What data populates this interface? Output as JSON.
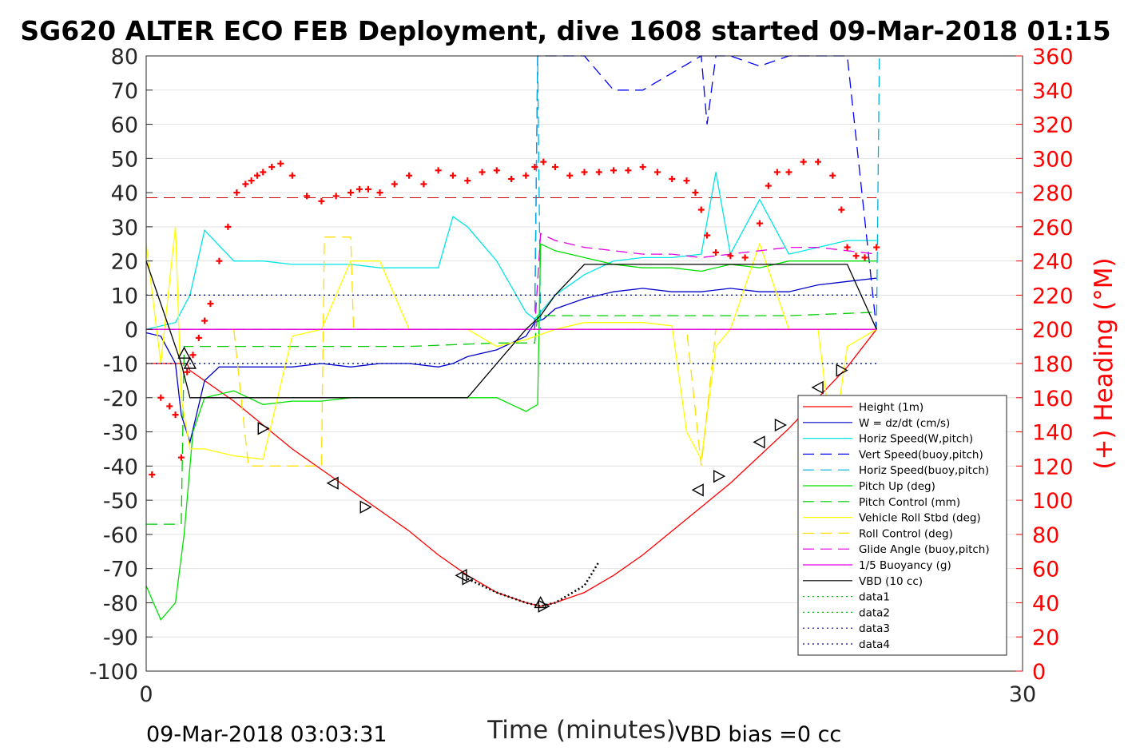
{
  "chart_data": {
    "type": "line",
    "title": "SG620 ALTER ECO FEB Deployment, dive 1608 started 09-Mar-2018 01:15",
    "xlabel": "Time (minutes)",
    "ylabel_right": "(+) Heading (°M)",
    "footer_left": "09-Mar-2018 03:03:31",
    "footer_right": "VBD bias =0 cc",
    "xlim": [
      0,
      30
    ],
    "ylim": [
      -100,
      80
    ],
    "ylim_right": [
      0,
      360
    ],
    "xticks": [
      "0",
      "30"
    ],
    "yticks": [
      "80",
      "70",
      "60",
      "50",
      "40",
      "30",
      "20",
      "10",
      "0",
      "-10",
      "-20",
      "-30",
      "-40",
      "-50",
      "-60",
      "-70",
      "-80",
      "-90",
      "-100"
    ],
    "yticks_right": [
      "360",
      "340",
      "320",
      "300",
      "280",
      "260",
      "240",
      "220",
      "200",
      "180",
      "160",
      "140",
      "120",
      "100",
      "80",
      "60",
      "40",
      "20",
      "0"
    ],
    "grid": true,
    "legend_position": "lower-right",
    "series": [
      {
        "name": "Height (1m)",
        "color": "#ff0000",
        "style": "solid",
        "x": [
          0,
          1.4,
          1.5,
          3,
          4,
          5,
          6,
          7,
          8,
          9,
          10,
          11,
          12,
          13,
          13.5,
          14,
          15,
          16,
          17,
          18,
          19,
          20,
          21,
          22,
          23,
          24,
          25
        ],
        "y": [
          -10,
          -10,
          -12,
          -21,
          -28,
          -35,
          -41,
          -47,
          -53,
          -59,
          -66,
          -72,
          -77,
          -80,
          -81,
          -80,
          -77,
          -72,
          -66,
          -59,
          -52,
          -45,
          -37,
          -29,
          -20,
          -11,
          0
        ]
      },
      {
        "name": "W = dz/dt (cm/s)",
        "color": "#0000c8",
        "style": "solid",
        "x": [
          0,
          0.5,
          1,
          1.2,
          1.5,
          2,
          2.5,
          3,
          4,
          5,
          6,
          7,
          8,
          9,
          10,
          10.5,
          11,
          12,
          13,
          13.3,
          13.6,
          14,
          15,
          16,
          17,
          18,
          19,
          20,
          21,
          22,
          23,
          24,
          25
        ],
        "y": [
          -1,
          -2,
          -10,
          -25,
          -33,
          -15,
          -11,
          -11,
          -11,
          -11,
          -10,
          -11,
          -10,
          -10,
          -11,
          -10,
          -8,
          -6,
          -2,
          2,
          3,
          6,
          9,
          11,
          12,
          11,
          11,
          12,
          11,
          11,
          13,
          14,
          15
        ]
      },
      {
        "name": "Horiz Speed(W,pitch)",
        "color": "#00e5e5",
        "style": "solid",
        "x": [
          0,
          1,
          1.5,
          2,
          3,
          4,
          5,
          6,
          7,
          8,
          9,
          10,
          10.5,
          11,
          12,
          13,
          13.3,
          13.6,
          14,
          15,
          16,
          17,
          18,
          19,
          19.5,
          20,
          21,
          22,
          23,
          24,
          25
        ],
        "y": [
          0,
          2,
          10,
          29,
          20,
          20,
          19,
          19,
          19,
          18,
          18,
          18,
          33,
          30,
          20,
          5,
          3,
          6,
          10,
          16,
          20,
          21,
          21,
          22,
          46,
          22,
          38,
          22,
          24,
          26,
          26
        ]
      },
      {
        "name": "Vert Speed(buoy,pitch)",
        "color": "#0000ff",
        "style": "dashed",
        "x": [
          13.3,
          13.4,
          14,
          15,
          16,
          17,
          18,
          19,
          19.2,
          19.5,
          20,
          21,
          22,
          23,
          24,
          25
        ],
        "y": [
          0,
          80,
          80,
          80,
          70,
          70,
          75,
          80,
          60,
          80,
          80,
          77,
          80,
          80,
          80,
          0
        ]
      },
      {
        "name": "Horiz Speed(buoy,pitch)",
        "color": "#00b0e0",
        "style": "dashed",
        "x": [
          13.3,
          13.4,
          13.5,
          25,
          25.1
        ],
        "y": [
          0,
          80,
          0,
          0,
          80
        ]
      },
      {
        "name": "Pitch Up (deg)",
        "color": "#00e000",
        "style": "solid",
        "x": [
          0,
          0.5,
          1,
          1.3,
          1.6,
          2,
          3,
          4,
          5,
          6,
          7,
          8,
          9,
          10,
          11,
          12,
          12.5,
          13,
          13.4,
          13.5,
          14,
          15,
          16,
          17,
          18,
          19,
          20,
          21,
          22,
          23,
          24,
          25
        ],
        "y": [
          -75,
          -85,
          -80,
          -60,
          -30,
          -20,
          -18,
          -22,
          -21,
          -21,
          -20,
          -20,
          -20,
          -20,
          -20,
          -20,
          -22,
          -24,
          -22,
          25,
          23,
          21,
          19,
          18,
          18,
          17,
          19,
          18,
          20,
          20,
          20,
          20
        ]
      },
      {
        "name": "Pitch Control (mm)",
        "color": "#00cc00",
        "style": "dashed",
        "x": [
          0,
          1.2,
          1.3,
          3,
          6,
          9,
          12,
          13.3,
          13.4,
          16,
          19,
          22,
          25
        ],
        "y": [
          -57,
          -57,
          -5,
          -5,
          -5,
          -5,
          -4,
          -4,
          4,
          4,
          4,
          4,
          5
        ]
      },
      {
        "name": "Vehicle Roll Stbd (deg)",
        "color": "#ffff00",
        "style": "solid",
        "x": [
          0,
          0.5,
          1,
          1.2,
          1.5,
          2,
          3,
          4,
          5,
          6,
          7,
          8,
          9,
          10,
          11,
          12,
          13,
          14,
          15,
          16,
          17,
          18,
          18.5,
          19,
          19.5,
          20,
          21,
          22,
          23,
          23.5,
          24,
          25
        ],
        "y": [
          25,
          -10,
          30,
          -20,
          -35,
          -35,
          -37,
          -38,
          -2,
          0,
          20,
          20,
          0,
          0,
          0,
          -5,
          -3,
          0,
          2,
          2,
          2,
          1,
          -30,
          -38,
          -5,
          0,
          25,
          0,
          0,
          -35,
          -5,
          0
        ]
      },
      {
        "name": "Roll Control (deg)",
        "color": "#ffe000",
        "style": "dashed",
        "x": [
          0,
          3,
          3.5,
          6,
          6.1,
          7,
          7.1,
          13,
          16,
          18.5,
          19,
          19.5,
          20,
          25
        ],
        "y": [
          0,
          0,
          -40,
          -40,
          27,
          27,
          0,
          0,
          0,
          0,
          -40,
          0,
          0,
          0
        ]
      },
      {
        "name": "Glide Angle (buoy,pitch)",
        "color": "#e000e0",
        "style": "dashed",
        "x": [
          0,
          13.3,
          13.5,
          14,
          15,
          16,
          17,
          18,
          19,
          20,
          21,
          22,
          23,
          24,
          25
        ],
        "y": [
          0,
          0,
          28,
          26,
          24,
          23,
          22,
          22,
          21,
          22,
          23,
          24,
          24,
          23,
          22
        ]
      },
      {
        "name": "1/5 Buoyancy (g)",
        "color": "#e000e0",
        "style": "solid",
        "x": [
          0,
          25
        ],
        "y": [
          0,
          0
        ]
      },
      {
        "name": "VBD (10 cc)",
        "color": "#000000",
        "style": "solid",
        "x": [
          0,
          1.2,
          1.5,
          3,
          6,
          9,
          11,
          13,
          13.5,
          14,
          15,
          16,
          17,
          18,
          19,
          20,
          21,
          22,
          23,
          24,
          25
        ],
        "y": [
          20,
          -10,
          -20,
          -20,
          -20,
          -20,
          -20,
          0,
          4,
          10,
          19,
          19,
          19,
          19,
          19,
          19,
          19,
          19,
          19,
          19,
          0
        ]
      },
      {
        "name": "data1",
        "color": "#00c000",
        "style": "dotted",
        "x": [
          0,
          25
        ],
        "y": [
          10,
          10
        ]
      },
      {
        "name": "data2",
        "color": "#00c000",
        "style": "dotted",
        "x": [
          0,
          25
        ],
        "y": [
          -10,
          -10
        ]
      },
      {
        "name": "data3",
        "color": "#0000a0",
        "style": "dotted",
        "x": [
          0,
          25
        ],
        "y": [
          10,
          10
        ]
      },
      {
        "name": "data4",
        "color": "#0000a0",
        "style": "dotted",
        "x": [
          0,
          25
        ],
        "y": [
          -10,
          -10
        ]
      }
    ],
    "heading_reference": {
      "color": "#cc0000",
      "style": "dashed",
      "value": 277
    },
    "heading": {
      "name": "(+) Heading (°M)",
      "color": "#ff0000",
      "axis": "right",
      "x": [
        0.2,
        0.5,
        0.8,
        1.0,
        1.2,
        1.4,
        1.6,
        1.8,
        2.0,
        2.2,
        2.5,
        2.8,
        3.1,
        3.4,
        3.6,
        3.8,
        4.0,
        4.3,
        4.6,
        5.0,
        5.5,
        6.0,
        6.5,
        7.0,
        7.3,
        7.6,
        8.0,
        8.5,
        9.0,
        9.5,
        10.0,
        10.5,
        11.0,
        11.5,
        12.0,
        12.5,
        13.0,
        13.3,
        13.6,
        14.0,
        14.5,
        15.0,
        15.5,
        16.0,
        16.5,
        17.0,
        17.5,
        18.0,
        18.5,
        18.8,
        19.0,
        19.2,
        19.5,
        20.0,
        20.5,
        21.0,
        21.3,
        21.6,
        22.0,
        22.5,
        23.0,
        23.5,
        23.8,
        24.0,
        24.3,
        24.6,
        25.0
      ],
      "y": [
        115,
        160,
        155,
        150,
        125,
        175,
        185,
        195,
        205,
        215,
        240,
        260,
        280,
        285,
        287,
        290,
        292,
        295,
        297,
        290,
        278,
        275,
        278,
        280,
        282,
        282,
        280,
        285,
        290,
        285,
        293,
        290,
        287,
        292,
        293,
        288,
        290,
        295,
        298,
        295,
        290,
        292,
        292,
        293,
        293,
        295,
        292,
        288,
        287,
        280,
        270,
        255,
        245,
        243,
        242,
        262,
        284,
        292,
        292,
        298,
        298,
        290,
        270,
        248,
        243,
        242,
        248
      ]
    },
    "triangle_markers": {
      "color": "#000000",
      "x": [
        1.3,
        1.5,
        4.0,
        6.4,
        7.5,
        10.8,
        11.0,
        13.5,
        13.6,
        18.9,
        19.6,
        21.0,
        21.7,
        23.0,
        23.8
      ],
      "y": [
        -7,
        -10,
        -29,
        -45,
        -52,
        -72,
        -73,
        -80,
        -81,
        -47,
        -43,
        -33,
        -28,
        -17,
        -12
      ]
    },
    "dotted_segment": {
      "color": "#000000",
      "x": [
        11.0,
        12.0,
        13.0,
        13.5,
        14.0,
        15.0,
        15.5
      ],
      "y": [
        -73,
        -77,
        -80,
        -81,
        -80,
        -75,
        -68
      ]
    }
  }
}
